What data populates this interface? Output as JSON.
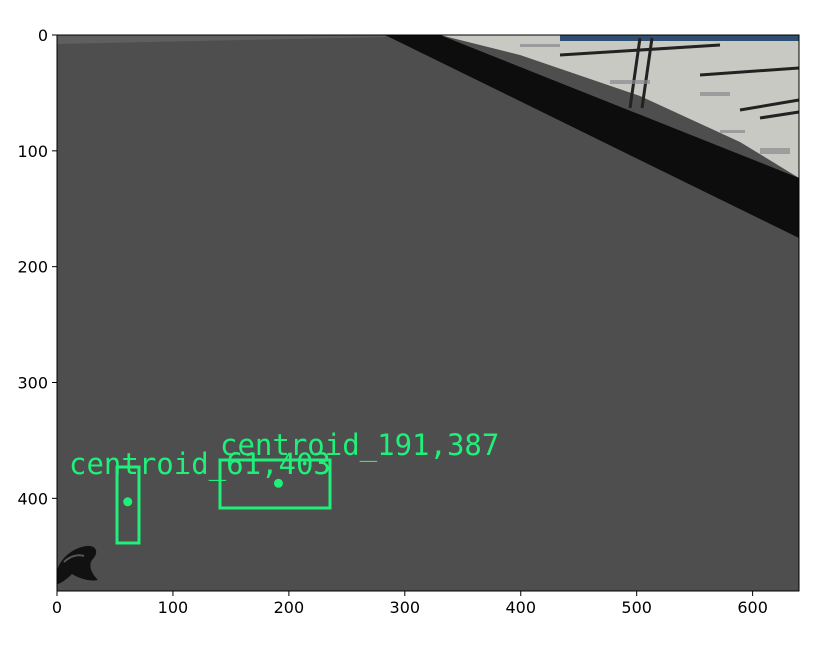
{
  "image": {
    "width": 640,
    "height": 480,
    "axes": {
      "x_ticks": [
        0,
        100,
        200,
        300,
        400,
        500,
        600
      ],
      "y_ticks": [
        0,
        100,
        200,
        300,
        400
      ],
      "xlim": [
        0,
        640
      ],
      "ylim": [
        480,
        0
      ]
    },
    "colors": {
      "background_floor": "#4e4e4e",
      "dark_band": "#0d0d0d",
      "annotation": "#1ef07a",
      "backdrop": "#c9c9c3"
    },
    "detections": [
      {
        "label": "centroid_61,403",
        "centroid_value": [
          61,
          403
        ]
      },
      {
        "label": "centroid_191,387",
        "centroid_value": [
          191,
          387
        ]
      }
    ]
  }
}
